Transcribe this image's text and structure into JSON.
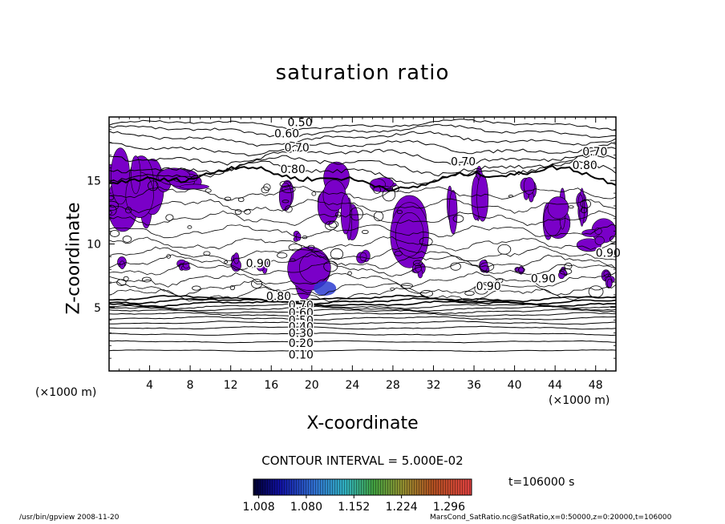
{
  "chart_data": {
    "type": "contour",
    "title": "saturation ratio",
    "xlabel": "X-coordinate",
    "ylabel": "Z-coordinate",
    "x_unit": "(×1000 m)",
    "y_unit": "(×1000 m)",
    "xlim": [
      0,
      50
    ],
    "ylim": [
      0,
      20
    ],
    "x_ticks": [
      4,
      8,
      12,
      16,
      20,
      24,
      28,
      32,
      36,
      40,
      44,
      48
    ],
    "y_ticks": [
      5,
      10,
      15
    ],
    "contour_labels": [
      "0.50",
      "0.60",
      "0.70",
      "0.80",
      "0.70",
      "0.70",
      "0.80",
      "0.90",
      "0.90",
      "0.90",
      "0.90",
      "0.80",
      "0.70",
      "0.60",
      "0.50",
      "0.40",
      "0.30",
      "0.20",
      "0.10"
    ],
    "contour_interval": "CONTOUR INTERVAL = 5.000E-02",
    "colorbar": {
      "ticks": [
        "1.008",
        "1.080",
        "1.152",
        "1.224",
        "1.296"
      ],
      "range": [
        1.0,
        1.33
      ]
    },
    "time_label": "t=106000 s",
    "fill_color": "#7a00c8"
  },
  "footer": {
    "left": "/usr/bin/gpview   2008-11-20",
    "right": "MarsCond_SatRatio.nc@SatRatio,x=0:50000,z=0:20000,t=106000"
  }
}
